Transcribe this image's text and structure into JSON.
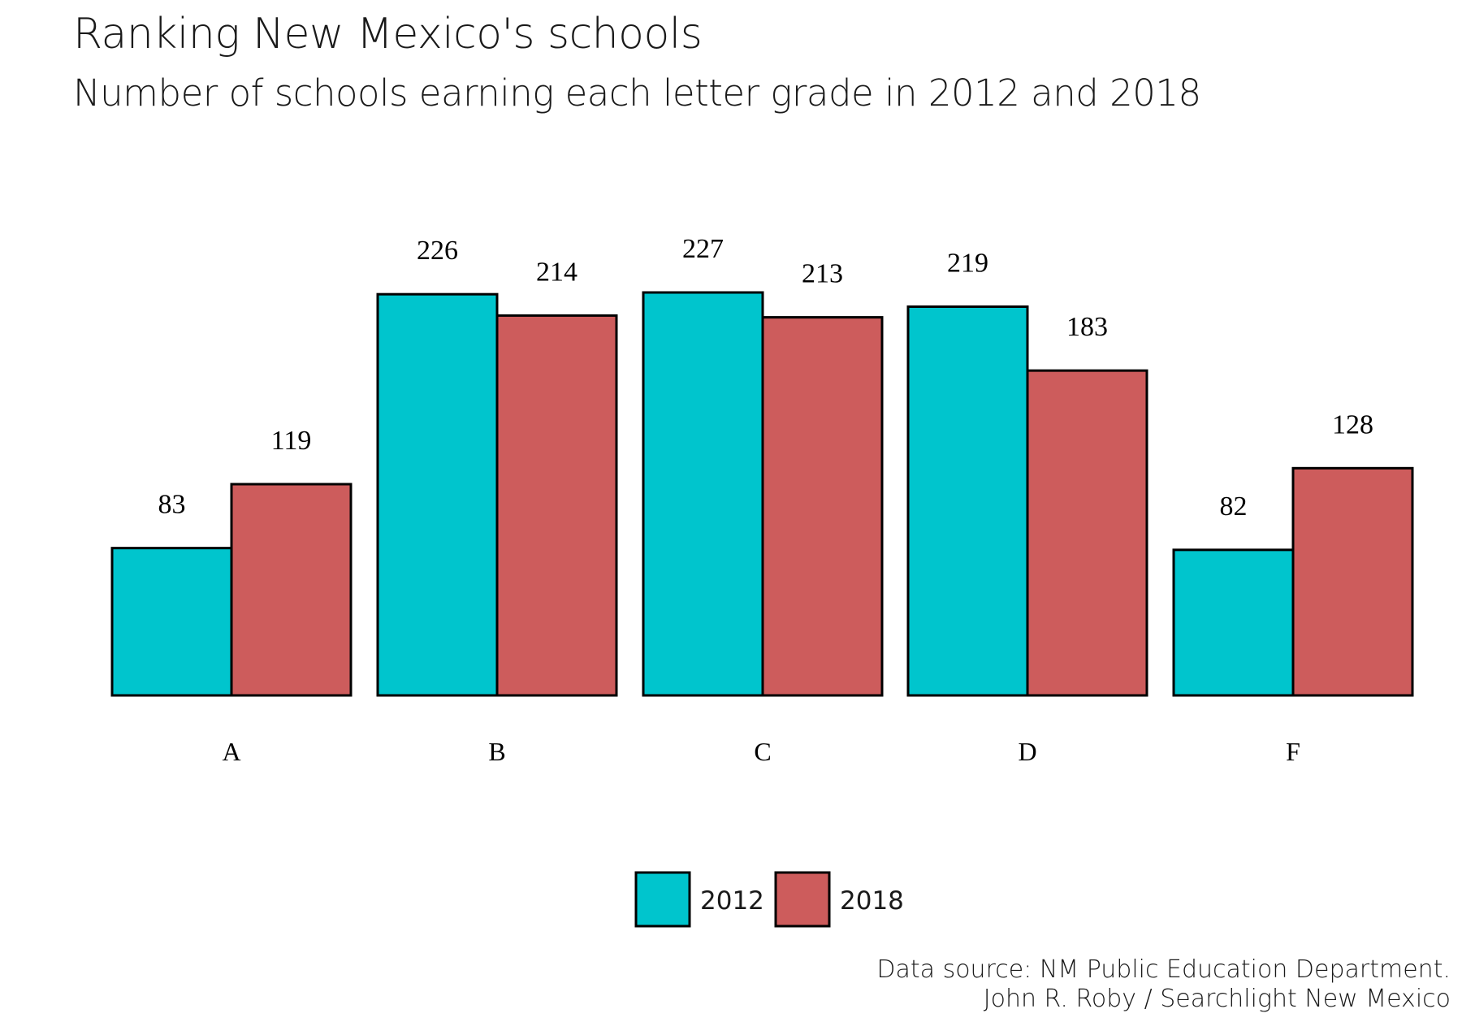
{
  "title": "Ranking New Mexico's schools",
  "subtitle": "Number of schools earning each letter grade in 2012 and 2018",
  "caption": {
    "line1": "Data source: NM Public Education Department.",
    "line2": "John R. Roby / Searchlight New Mexico"
  },
  "chart_data": {
    "type": "bar",
    "categories": [
      "A",
      "B",
      "C",
      "D",
      "F"
    ],
    "series": [
      {
        "name": "2012",
        "color": "#00C5CD",
        "values": [
          83,
          226,
          227,
          219,
          82
        ]
      },
      {
        "name": "2018",
        "color": "#CD5C5C",
        "values": [
          119,
          214,
          213,
          183,
          128
        ]
      }
    ],
    "title": "Ranking New Mexico's schools",
    "subtitle": "Number of schools earning each letter grade in 2012 and 2018",
    "xlabel": "",
    "ylabel": "",
    "ylim": [
      0,
      227
    ],
    "grid": false,
    "legend": "bottom",
    "data_labels": true
  }
}
